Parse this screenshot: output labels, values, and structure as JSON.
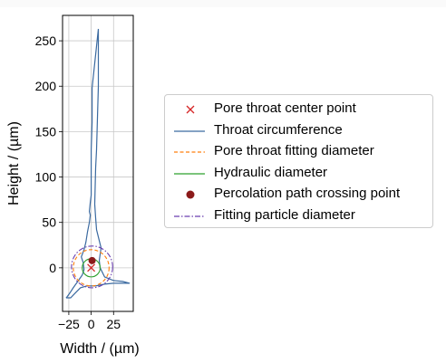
{
  "chart_data": {
    "type": "line",
    "xlabel": "Width / (µm)",
    "ylabel": "Height / (µm)",
    "xlim": [
      -32,
      47
    ],
    "ylim": [
      -48,
      278
    ],
    "xticks": [
      "−25",
      "0",
      "25"
    ],
    "xtick_values": [
      -25,
      0,
      25
    ],
    "yticks": [
      "0",
      "50",
      "100",
      "150",
      "200",
      "250"
    ],
    "ytick_values": [
      0,
      50,
      100,
      150,
      200,
      250
    ],
    "grid": true,
    "legend_placement": "right, outside plot",
    "series": [
      {
        "name": "Pore throat center point",
        "kind": "marker-x",
        "color": "#d62728",
        "points": [
          [
            0,
            0
          ]
        ]
      },
      {
        "name": "Throat circumference",
        "kind": "line",
        "color": "#3b6aa0",
        "points": [
          [
            -28,
            -33
          ],
          [
            -27,
            -32
          ],
          [
            -24,
            -28
          ],
          [
            -20,
            -22
          ],
          [
            -15,
            -15
          ],
          [
            -10,
            -8
          ],
          [
            -8,
            -2
          ],
          [
            -9,
            6
          ],
          [
            -11,
            12
          ],
          [
            -8,
            20
          ],
          [
            -6,
            28
          ],
          [
            -4,
            40
          ],
          [
            -2,
            50
          ],
          [
            -1,
            58
          ],
          [
            -2,
            62
          ],
          [
            -1,
            72
          ],
          [
            0,
            80
          ],
          [
            0,
            100
          ],
          [
            0,
            130
          ],
          [
            1,
            160
          ],
          [
            1,
            198
          ],
          [
            8,
            263
          ],
          [
            8,
            200
          ],
          [
            6,
            130
          ],
          [
            5,
            110
          ],
          [
            4,
            70
          ],
          [
            5,
            55
          ],
          [
            6,
            42
          ],
          [
            9,
            30
          ],
          [
            11,
            22
          ],
          [
            10,
            15
          ],
          [
            9,
            8
          ],
          [
            10,
            0
          ],
          [
            15,
            -10
          ],
          [
            25,
            -14
          ],
          [
            35,
            -15
          ],
          [
            43,
            -17
          ],
          [
            25,
            -17
          ],
          [
            15,
            -18
          ],
          [
            5,
            -20
          ],
          [
            -5,
            -20
          ],
          [
            -12,
            -22
          ],
          [
            -18,
            -28
          ],
          [
            -23,
            -33
          ],
          [
            -28,
            -33
          ]
        ]
      },
      {
        "name": "Pore throat fitting diameter",
        "kind": "circle-dashed",
        "color": "#ff7f0e",
        "center": [
          0,
          0
        ],
        "radius": 20
      },
      {
        "name": "Hydraulic diameter",
        "kind": "circle-solid",
        "color": "#2ca02c",
        "center": [
          0,
          0
        ],
        "radius": 10
      },
      {
        "name": "Percolation path crossing point",
        "kind": "marker-dot",
        "color": "#8b1a1a",
        "points": [
          [
            1,
            8
          ]
        ]
      },
      {
        "name": "Fitting particle diameter",
        "kind": "circle-dashdot",
        "color": "#6a3fb0",
        "center": [
          1,
          1
        ],
        "radius": 23
      }
    ]
  }
}
